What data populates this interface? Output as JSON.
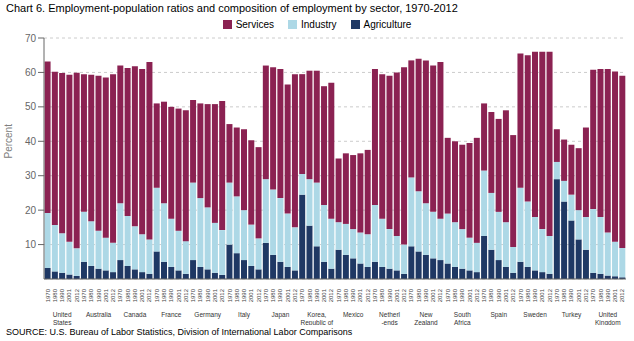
{
  "chart_data": {
    "type": "bar",
    "stacked": true,
    "grid": true,
    "title": "Chart 6. Employment-population ratios and composition of employment by sector, 1970-2012",
    "source": "SOURCE: U.S. Bureau of Labor Statistics, Division of International Labor Comparisons",
    "y_label": "Percent",
    "ylim": [
      0,
      70
    ],
    "yticks": [
      10,
      20,
      30,
      40,
      50,
      60,
      70
    ],
    "groups": [
      "United\nStates",
      "Australia",
      "Canada",
      "France",
      "Germany",
      "Italy",
      "Japan",
      "Korea,\nRepublic of",
      "Mexico",
      "Netherl\n-ends",
      "New\nZealand",
      "South\nAfrica",
      "Spain",
      "Sweden",
      "Turkey",
      "United\nKingdom"
    ],
    "categories": [
      "1970",
      "1980",
      "1990",
      "2001",
      "2012",
      "1970",
      "1980",
      "1990",
      "2001",
      "2012",
      "1970",
      "1980",
      "1990",
      "2001",
      "2012",
      "1970",
      "1980",
      "1990",
      "2001",
      "2012",
      "1970",
      "1980",
      "1990",
      "2001",
      "2012",
      "1970",
      "1980",
      "1990",
      "2001",
      "2012",
      "1970",
      "1980",
      "1990",
      "2001",
      "2012",
      "1970",
      "1980",
      "1990",
      "2001",
      "2012",
      "1970",
      "1980",
      "1990",
      "2001",
      "2012",
      "1970",
      "1980",
      "1990",
      "2001",
      "2012",
      "1970",
      "1980",
      "1990",
      "2001",
      "2012",
      "1970",
      "1980",
      "1990",
      "2001",
      "2012",
      "1970",
      "1980",
      "1990",
      "2001",
      "2012",
      "1970",
      "1980",
      "1990",
      "2001",
      "2012",
      "1970",
      "1980",
      "1990",
      "2001",
      "2012",
      "1970",
      "1980",
      "1990",
      "2001",
      "2012"
    ],
    "series": [
      {
        "name": "Services",
        "color": "#8B2252",
        "values": [
          44.0,
          44.5,
          46.5,
          48.5,
          51.0,
          40.0,
          42.5,
          45.0,
          46.5,
          49.0,
          40.0,
          43.0,
          46.5,
          48.0,
          51.5,
          24.5,
          29.5,
          32.5,
          35.5,
          38.0,
          24.0,
          27.5,
          30.0,
          34.5,
          37.5,
          17.0,
          20.0,
          23.5,
          24.5,
          26.5,
          33.0,
          35.5,
          37.5,
          37.5,
          44.5,
          29.0,
          31.5,
          32.5,
          34.5,
          39.5,
          18.5,
          20.5,
          21.5,
          23.0,
          24.5,
          39.5,
          42.0,
          44.5,
          47.5,
          51.5,
          34.0,
          38.5,
          41.5,
          42.5,
          45.5,
          22.0,
          23.5,
          24.5,
          27.5,
          30.5,
          19.5,
          23.5,
          27.0,
          32.5,
          32.5,
          39.0,
          42.5,
          48.0,
          51.5,
          53.5,
          9.5,
          12.0,
          14.5,
          18.0,
          26.0,
          40.5,
          43.0,
          47.5,
          49.5,
          50.0
        ]
      },
      {
        "name": "Industry",
        "color": "#ADD8E6",
        "values": [
          16.0,
          13.5,
          11.5,
          9.5,
          8.0,
          14.5,
          13.0,
          11.0,
          9.5,
          8.5,
          16.5,
          14.5,
          12.5,
          11.0,
          10.0,
          18.5,
          17.0,
          14.0,
          11.5,
          9.5,
          22.5,
          20.0,
          18.0,
          14.5,
          13.0,
          18.0,
          16.5,
          14.5,
          12.0,
          9.0,
          18.5,
          19.0,
          18.5,
          15.5,
          12.5,
          6.0,
          13.5,
          18.5,
          16.5,
          14.5,
          8.0,
          9.0,
          8.5,
          9.0,
          9.5,
          16.5,
          14.0,
          11.5,
          10.0,
          8.5,
          20.0,
          17.5,
          15.0,
          13.5,
          12.0,
          14.5,
          13.0,
          11.5,
          9.5,
          8.5,
          19.0,
          16.5,
          14.0,
          13.0,
          7.5,
          21.5,
          19.0,
          15.5,
          12.5,
          11.0,
          5.0,
          6.0,
          7.5,
          8.5,
          9.5,
          18.5,
          16.5,
          12.5,
          10.0,
          8.5
        ]
      },
      {
        "name": "Agriculture",
        "color": "#1F3864",
        "values": [
          3.2,
          2.2,
          1.8,
          1.3,
          0.9,
          5.0,
          3.8,
          3.0,
          2.5,
          2.0,
          5.5,
          3.8,
          2.8,
          2.0,
          1.5,
          8.0,
          5.0,
          3.5,
          2.5,
          1.5,
          5.5,
          3.5,
          2.8,
          1.8,
          1.2,
          10.0,
          7.5,
          5.5,
          3.8,
          2.8,
          10.5,
          7.0,
          5.0,
          3.5,
          2.5,
          24.5,
          15.5,
          9.5,
          5.0,
          3.0,
          8.5,
          7.0,
          6.0,
          4.5,
          3.5,
          5.0,
          3.5,
          3.0,
          2.5,
          1.5,
          9.5,
          8.0,
          7.0,
          6.0,
          5.5,
          4.5,
          3.5,
          3.0,
          2.5,
          2.0,
          12.5,
          8.5,
          5.5,
          3.5,
          1.8,
          5.0,
          3.5,
          2.5,
          2.0,
          1.5,
          29.0,
          22.5,
          17.0,
          11.5,
          8.5,
          1.8,
          1.5,
          1.0,
          0.8,
          0.5
        ]
      }
    ]
  }
}
